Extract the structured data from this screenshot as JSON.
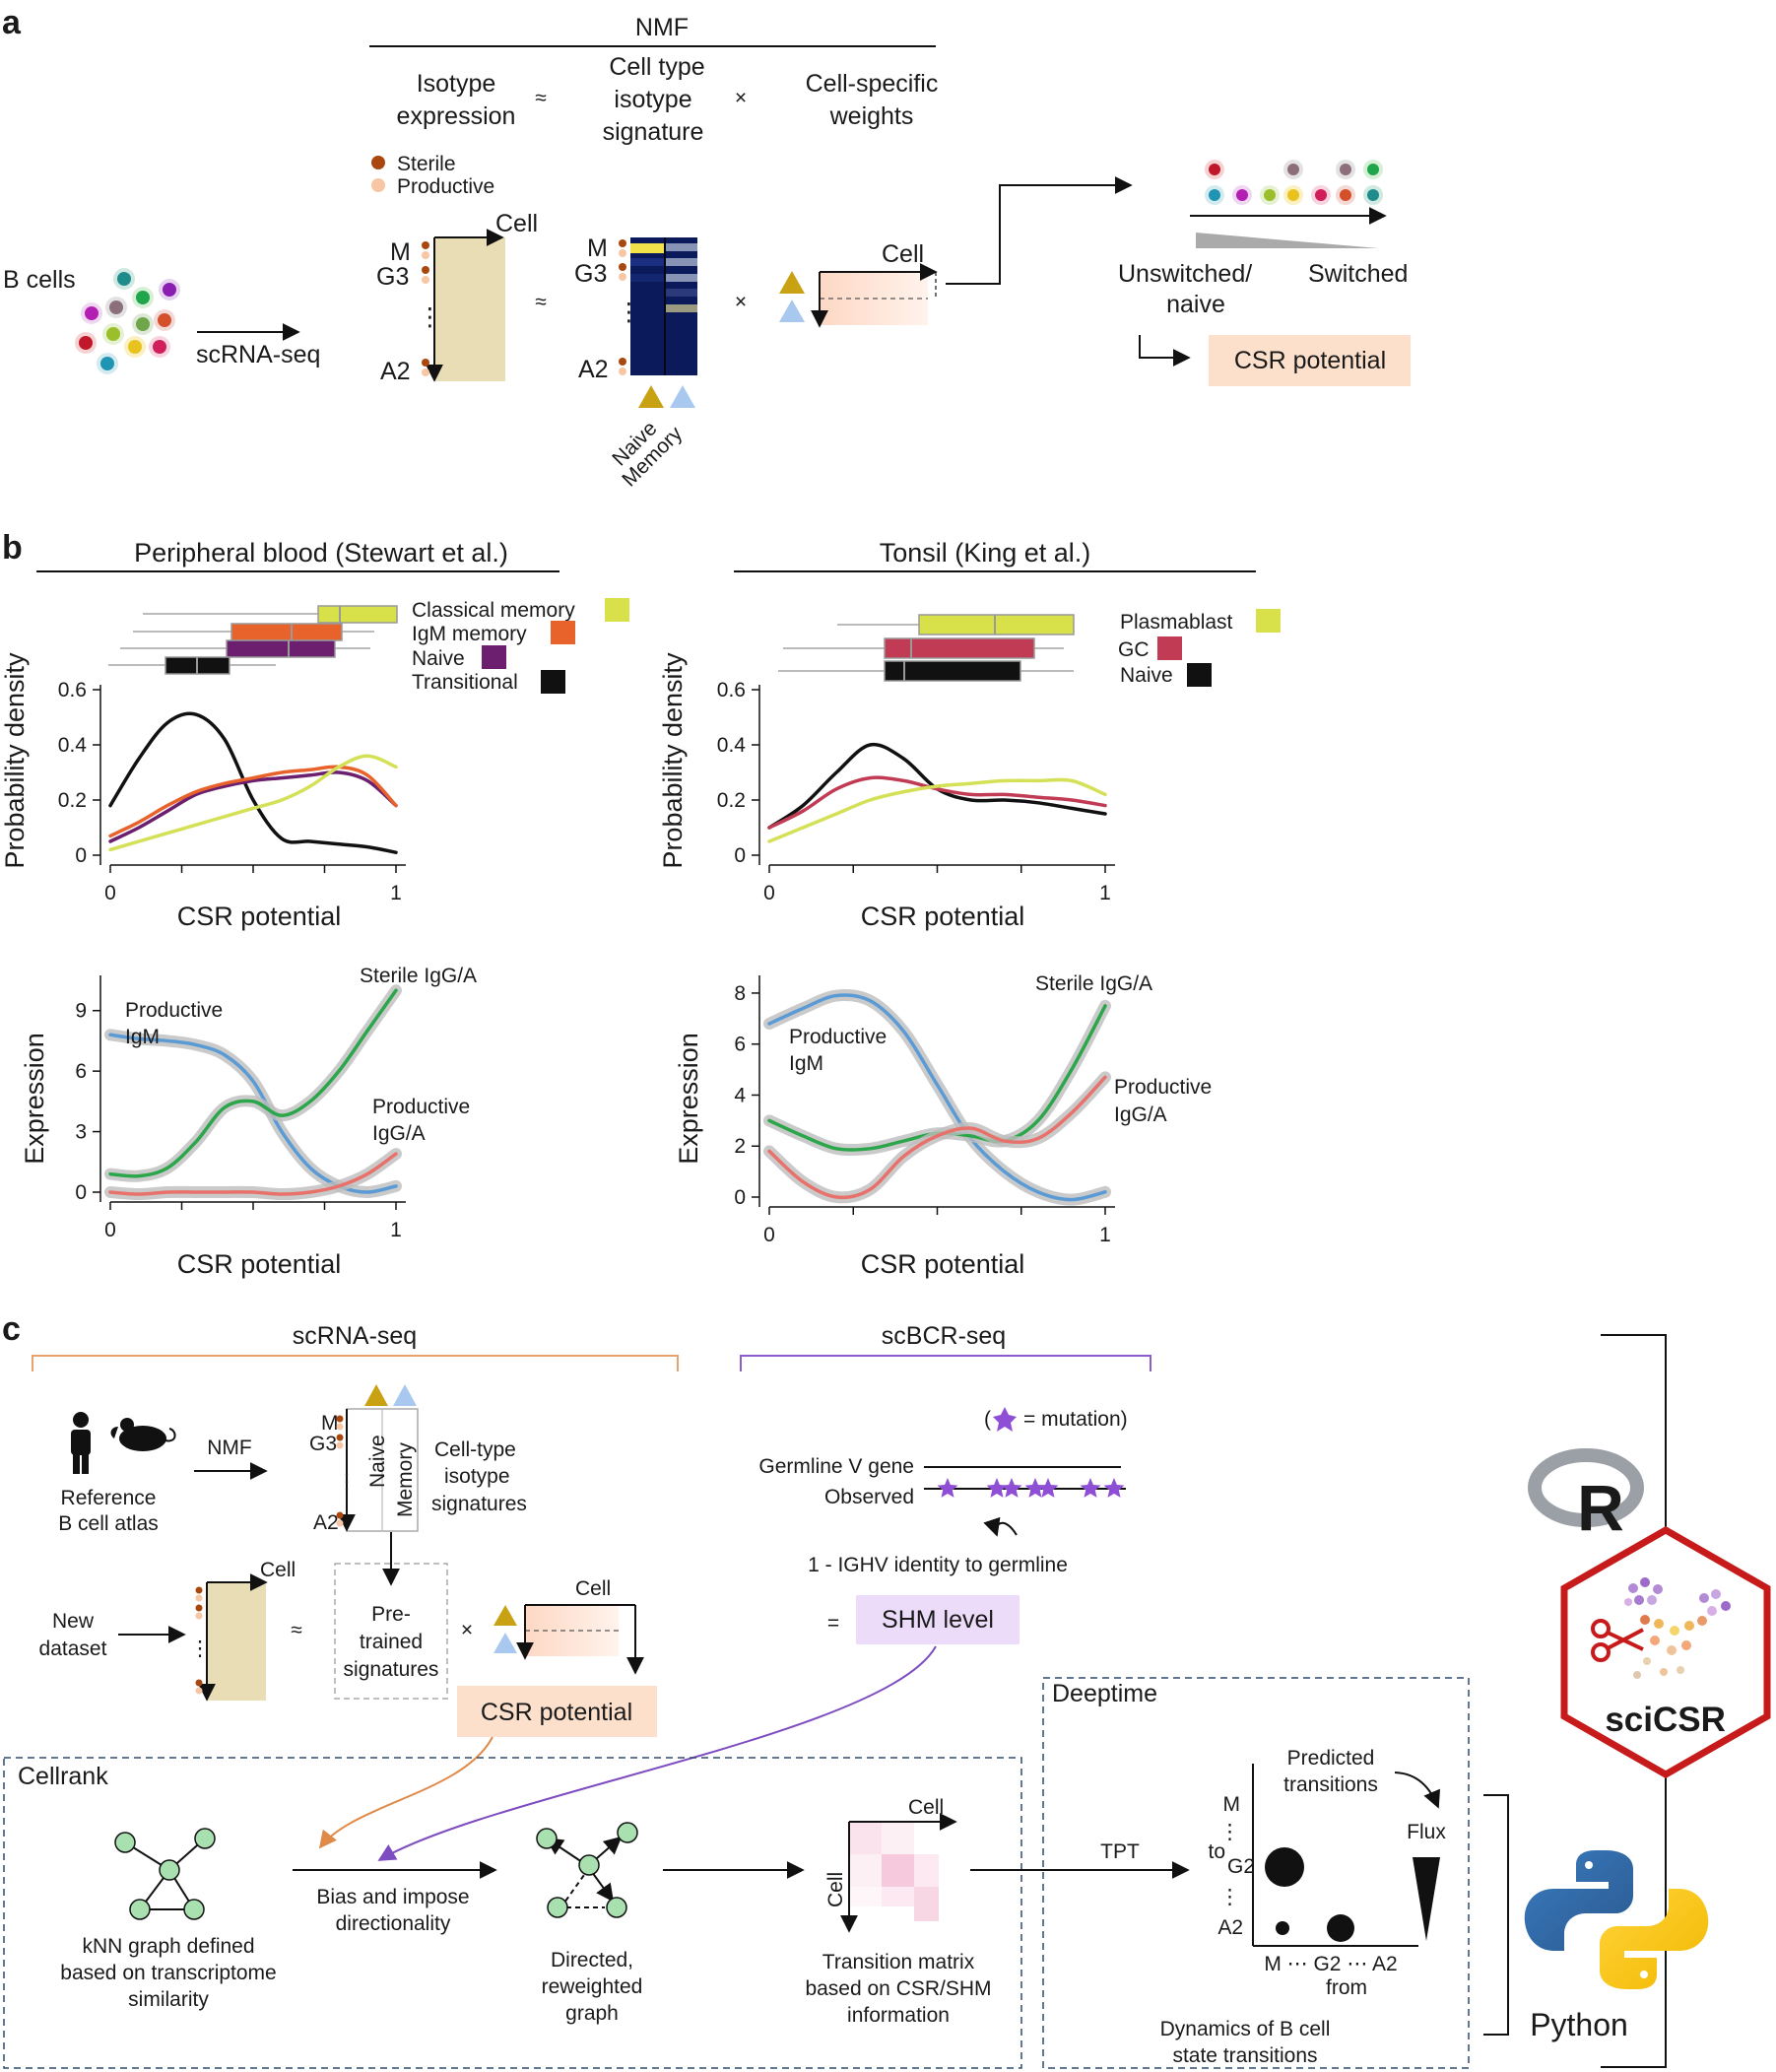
{
  "panel_a": {
    "letter": "a",
    "nmf": "NMF",
    "iso_expr": [
      "Isotype",
      "expression"
    ],
    "approx": "≈",
    "times": "×",
    "sig": [
      "Cell type",
      "isotype",
      "signature"
    ],
    "weights": [
      "Cell-specific",
      "weights"
    ],
    "sterile": "Sterile",
    "productive": "Productive",
    "bcells": "B cells",
    "scrna": "scRNA-seq",
    "cell": "Cell",
    "m": "M",
    "g3": "G3",
    "a2": "A2",
    "vdots": "⋮",
    "naive": "Naive",
    "memory": "Memory",
    "unswitched": [
      "Unswitched/",
      "naive"
    ],
    "switched": "Switched",
    "csr_potential": "CSR potential"
  },
  "panel_b": {
    "letter": "b",
    "left_title": "Peripheral blood (Stewart et al.)",
    "right_title": "Tonsil (King et al.)",
    "ylabel_density": "Probability density",
    "ylabel_expr": "Expression",
    "xlabel": "CSR potential",
    "left_legend": [
      "Classical memory",
      "IgM memory",
      "Naive",
      "Transitional"
    ],
    "right_legend": [
      "Plasmablast",
      "GC",
      "Naive"
    ],
    "left_expr_labels": {
      "prod_igm": [
        "Productive",
        "IgM"
      ],
      "sterile": "Sterile IgG/A",
      "prod_igga": [
        "Productive",
        "IgG/A"
      ]
    },
    "right_expr_labels": {
      "prod_igm": [
        "Productive",
        "IgM"
      ],
      "sterile": "Sterile IgG/A",
      "prod_igga": [
        "Productive",
        "IgG/A"
      ]
    }
  },
  "chart_data": [
    {
      "type": "line",
      "title": "Peripheral blood (Stewart et al.)",
      "xlabel": "CSR potential",
      "ylabel": "Probability density",
      "xlim": [
        0,
        1
      ],
      "ylim": [
        0,
        0.6
      ],
      "x_ticks": [
        "0",
        "1"
      ],
      "y_ticks": [
        "0",
        "0.2",
        "0.4",
        "0.6"
      ],
      "x": [
        0.0,
        0.1,
        0.2,
        0.3,
        0.4,
        0.5,
        0.6,
        0.7,
        0.8,
        0.9,
        1.0
      ],
      "series": [
        {
          "name": "Transitional",
          "color": "#111111",
          "values": [
            0.18,
            0.35,
            0.48,
            0.51,
            0.42,
            0.2,
            0.06,
            0.05,
            0.04,
            0.03,
            0.01
          ]
        },
        {
          "name": "Naive",
          "color": "#6b1f6e",
          "values": [
            0.05,
            0.1,
            0.16,
            0.22,
            0.25,
            0.27,
            0.28,
            0.29,
            0.3,
            0.27,
            0.18
          ]
        },
        {
          "name": "IgM memory",
          "color": "#e8632b",
          "values": [
            0.07,
            0.12,
            0.18,
            0.23,
            0.26,
            0.28,
            0.3,
            0.31,
            0.32,
            0.29,
            0.18
          ]
        },
        {
          "name": "Classical memory",
          "color": "#d4e157",
          "values": [
            0.02,
            0.05,
            0.08,
            0.11,
            0.14,
            0.17,
            0.2,
            0.25,
            0.32,
            0.36,
            0.32
          ]
        }
      ]
    },
    {
      "type": "line",
      "title": "Tonsil (King et al.)",
      "xlabel": "CSR potential",
      "ylabel": "Probability density",
      "xlim": [
        0,
        1
      ],
      "ylim": [
        0,
        0.6
      ],
      "x_ticks": [
        "0",
        "1"
      ],
      "y_ticks": [
        "0",
        "0.2",
        "0.4",
        "0.6"
      ],
      "x": [
        0.0,
        0.1,
        0.2,
        0.3,
        0.4,
        0.5,
        0.6,
        0.7,
        0.8,
        0.9,
        1.0
      ],
      "series": [
        {
          "name": "Naive",
          "color": "#111111",
          "values": [
            0.1,
            0.18,
            0.3,
            0.4,
            0.35,
            0.24,
            0.2,
            0.2,
            0.19,
            0.17,
            0.15
          ]
        },
        {
          "name": "GC",
          "color": "#c23b55",
          "values": [
            0.1,
            0.16,
            0.24,
            0.28,
            0.27,
            0.24,
            0.22,
            0.22,
            0.21,
            0.2,
            0.18
          ]
        },
        {
          "name": "Plasmablast",
          "color": "#d4e157",
          "values": [
            0.05,
            0.1,
            0.15,
            0.2,
            0.23,
            0.25,
            0.26,
            0.27,
            0.27,
            0.27,
            0.22
          ]
        }
      ]
    },
    {
      "type": "line",
      "xlabel": "CSR potential",
      "ylabel": "Expression",
      "xlim": [
        0,
        1
      ],
      "ylim": [
        0,
        10.5
      ],
      "x_ticks": [
        "0",
        "1"
      ],
      "y_ticks": [
        "0",
        "3",
        "6",
        "9"
      ],
      "x": [
        0.0,
        0.1,
        0.2,
        0.3,
        0.4,
        0.5,
        0.6,
        0.7,
        0.8,
        0.9,
        1.0
      ],
      "series": [
        {
          "name": "Productive IgM",
          "color": "#5b9bd5",
          "values": [
            7.8,
            7.6,
            7.5,
            7.3,
            6.8,
            5.5,
            3.0,
            1.2,
            0.3,
            0.0,
            0.3
          ]
        },
        {
          "name": "Sterile IgG/A",
          "color": "#2ca64b",
          "values": [
            0.9,
            0.8,
            1.2,
            2.5,
            4.2,
            4.5,
            3.8,
            4.5,
            6.0,
            8.0,
            10.0
          ]
        },
        {
          "name": "Productive IgG/A",
          "color": "#e8726b",
          "values": [
            0.0,
            -0.1,
            0.0,
            0.0,
            0.0,
            0.0,
            -0.1,
            0.0,
            0.3,
            0.9,
            1.9
          ]
        }
      ]
    },
    {
      "type": "line",
      "xlabel": "CSR potential",
      "ylabel": "Expression",
      "xlim": [
        0,
        1
      ],
      "ylim": [
        0,
        8.5
      ],
      "x_ticks": [
        "0",
        "1"
      ],
      "y_ticks": [
        "0",
        "2",
        "4",
        "6",
        "8"
      ],
      "x": [
        0.0,
        0.1,
        0.2,
        0.3,
        0.4,
        0.5,
        0.6,
        0.7,
        0.8,
        0.9,
        1.0
      ],
      "series": [
        {
          "name": "Productive IgM",
          "color": "#5b9bd5",
          "values": [
            6.8,
            7.4,
            7.9,
            7.7,
            6.5,
            4.4,
            2.3,
            1.0,
            0.2,
            -0.1,
            0.2
          ]
        },
        {
          "name": "Sterile IgG/A",
          "color": "#2ca64b",
          "values": [
            3.0,
            2.4,
            1.9,
            1.9,
            2.2,
            2.5,
            2.4,
            2.2,
            3.0,
            5.0,
            7.5
          ]
        },
        {
          "name": "Productive IgG/A",
          "color": "#e8726b",
          "values": [
            1.8,
            0.6,
            0.0,
            0.3,
            1.6,
            2.4,
            2.7,
            2.2,
            2.3,
            3.3,
            4.7
          ]
        }
      ]
    }
  ],
  "panel_c": {
    "letter": "c",
    "scrna": "scRNA-seq",
    "scbcr": "scBCR-seq",
    "nmf": "NMF",
    "ref_atlas": [
      "Reference",
      "B cell atlas"
    ],
    "celltype_sig": [
      "Cell-type",
      "isotype",
      "signatures"
    ],
    "new_dataset": [
      "New",
      "dataset"
    ],
    "pretrained": [
      "Pre-",
      "trained",
      "signatures"
    ],
    "cell": "Cell",
    "csr_potential": "CSR potential",
    "mutation_prefix": "(",
    "mutation_text": "= mutation)",
    "germline": "Germline V gene",
    "observed": "Observed",
    "ighv": "1 - IGHV identity to germline",
    "equals": "=",
    "shm": "SHM level",
    "cellrank": "Cellrank",
    "deeptime": "Deeptime",
    "knn": [
      "kNN graph defined",
      "based on transcriptome",
      "similarity"
    ],
    "bias": [
      "Bias and impose",
      "directionality"
    ],
    "directed": [
      "Directed,",
      "reweighted",
      "graph"
    ],
    "transition": [
      "Transition matrix",
      "based on CSR/SHM",
      "information"
    ],
    "tpt": "TPT",
    "predicted": [
      "Predicted",
      "transitions"
    ],
    "flux": "Flux",
    "to": "to",
    "from": "from",
    "m": "M",
    "g2": "G2",
    "a2": "A2",
    "g3": "G3",
    "xaxis_row": "M ⋯ G2 ⋯ A2",
    "dynamics": [
      "Dynamics of B cell",
      "state transitions"
    ],
    "r_logo": "R",
    "scicsr_sci": "sci",
    "scicsr_csr": "CSR",
    "python": "Python"
  },
  "colors": {
    "naive_gold": "#c9a214",
    "memory_blue": "#a8c8ef",
    "salmon_bg": "#fde0cc",
    "shm_bg": "#ecdcf9",
    "tan_matrix": "#e8ddb5",
    "orange_bracket": "#e8a26d",
    "purple_bracket": "#8b5cc9",
    "knn_green": "#a8e0b0",
    "hex_red": "#c71a1a",
    "box_blue": "#2f4a6b"
  }
}
